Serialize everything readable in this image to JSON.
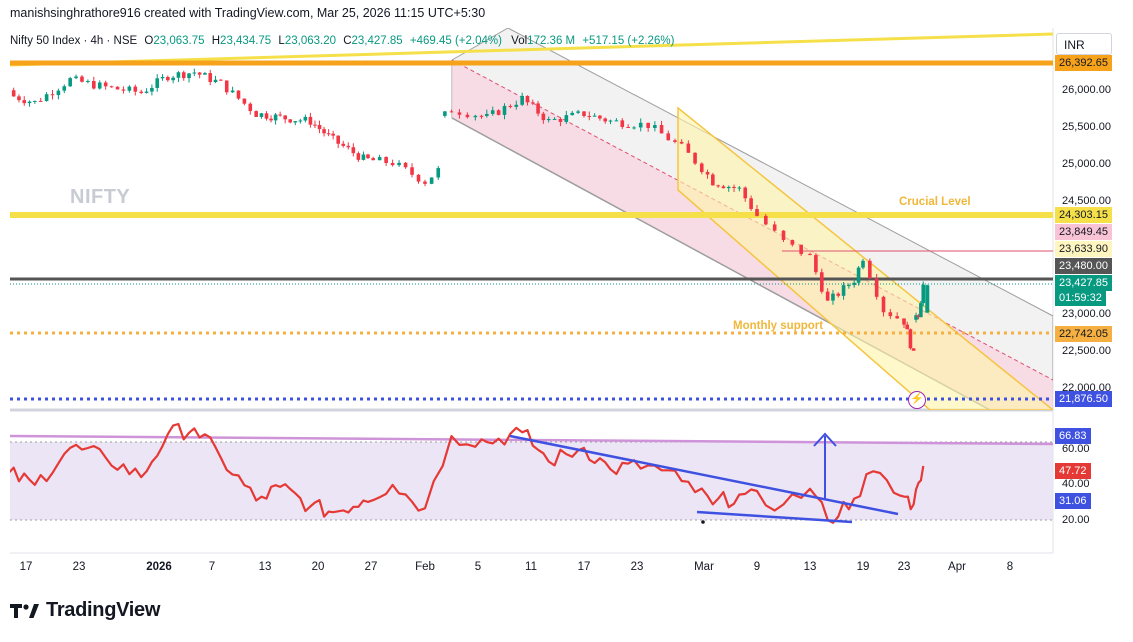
{
  "header": {
    "caption": "manishsinghrathore916 created with TradingView.com, Mar 25, 2026 11:15 UTC+5:30"
  },
  "legend": {
    "symbol": "Nifty 50 Index · 4h · NSE",
    "open_label": "O",
    "open": "23,063.75",
    "high_label": "H",
    "high": "23,434.75",
    "low_label": "L",
    "low": "23,063.20",
    "close_label": "C",
    "close": "23,427.85",
    "change": "+469.45 (+2.04%)",
    "vol_label": "Vol",
    "vol": "172.36 M",
    "vol_change": "+517.15 (+2.26%)"
  },
  "currency": "INR",
  "watermark": "NIFTY",
  "annotations": {
    "crucial": "Crucial Level",
    "monthly": "Monthly support"
  },
  "colors": {
    "up": "#089981",
    "down": "#f23645",
    "rsi": "#e53935",
    "trend_blue": "#3f51e0",
    "orange": "#f7a21b",
    "yellow": "#f5e04a"
  },
  "price_tags": {
    "t1": "26,392.65",
    "t2": "24,303.15",
    "t3": "23,849.45",
    "t4": "23,633.90",
    "t5": "23,480.00",
    "t6": "23,427.85",
    "t6b": "01:59:32",
    "t7": "22,742.05",
    "t8": "21,876.50"
  },
  "rsi_tags": {
    "r1": "66.83",
    "r2": "47.72",
    "r3": "31.06"
  },
  "y_ticks": [
    "26,000.00",
    "25,500.00",
    "25,000.00",
    "24,500.00",
    "23,000.00",
    "22,500.00",
    "22,000.00"
  ],
  "rsi_ticks": [
    "60.00",
    "40.00",
    "20.00"
  ],
  "x_ticks": [
    "17",
    "23",
    "2026",
    "7",
    "13",
    "20",
    "27",
    "Feb",
    "5",
    "11",
    "17",
    "23",
    "Mar",
    "9",
    "13",
    "19",
    "23",
    "Apr",
    "8"
  ],
  "footer": {
    "brand": "TradingView"
  },
  "chart_data": [
    {
      "type": "candlestick",
      "title": "Nifty 50 Index · 4h · NSE",
      "x_range": [
        "Dec 14, 2025",
        "Apr 12, 2026"
      ],
      "ylim": [
        21700,
        26700
      ],
      "current_price": 23427.85,
      "horizontal_levels": [
        26392.65,
        24303.15,
        23849.45,
        23633.9,
        23480.0,
        22742.05,
        21876.5
      ],
      "close_path": [
        {
          "date": "Dec 15",
          "close": 25950
        },
        {
          "date": "Dec 18",
          "close": 25850
        },
        {
          "date": "Dec 22",
          "close": 26150
        },
        {
          "date": "Dec 26",
          "close": 26050
        },
        {
          "date": "Dec 30",
          "close": 25980
        },
        {
          "date": "Jan 2",
          "close": 26200
        },
        {
          "date": "Jan 5",
          "close": 26250
        },
        {
          "date": "Jan 8",
          "close": 26100
        },
        {
          "date": "Jan 12",
          "close": 25700
        },
        {
          "date": "Jan 15",
          "close": 25650
        },
        {
          "date": "Jan 19",
          "close": 25600
        },
        {
          "date": "Jan 22",
          "close": 25350
        },
        {
          "date": "Jan 26",
          "close": 25100
        },
        {
          "date": "Jan 29",
          "close": 25050
        },
        {
          "date": "Feb 1",
          "close": 24800
        },
        {
          "date": "Feb 2",
          "close": 24950
        },
        {
          "date": "Feb 3",
          "close": 25750
        },
        {
          "date": "Feb 6",
          "close": 25650
        },
        {
          "date": "Feb 10",
          "close": 25900
        },
        {
          "date": "Feb 13",
          "close": 25600
        },
        {
          "date": "Feb 17",
          "close": 25700
        },
        {
          "date": "Feb 20",
          "close": 25600
        },
        {
          "date": "Feb 24",
          "close": 25550
        },
        {
          "date": "Feb 27",
          "close": 25250
        },
        {
          "date": "Mar 2",
          "close": 24800
        },
        {
          "date": "Mar 5",
          "close": 24700
        },
        {
          "date": "Mar 9",
          "close": 24000
        },
        {
          "date": "Mar 11",
          "close": 23800
        },
        {
          "date": "Mar 13",
          "close": 23200
        },
        {
          "date": "Mar 16",
          "close": 23500
        },
        {
          "date": "Mar 17",
          "close": 23800
        },
        {
          "date": "Mar 19",
          "close": 23100
        },
        {
          "date": "Mar 21",
          "close": 22950
        },
        {
          "date": "Mar 23",
          "close": 22500
        },
        {
          "date": "Mar 24",
          "close": 23050
        },
        {
          "date": "Mar 25",
          "close": 23427.85
        }
      ]
    },
    {
      "type": "line",
      "title": "RSI",
      "ylim": [
        14,
        86
      ],
      "levels": [
        60,
        20
      ],
      "series": [
        {
          "values": [
            {
              "date": "Dec 15",
              "value": 44
            },
            {
              "date": "Dec 18",
              "value": 38
            },
            {
              "date": "Dec 22",
              "value": 57
            },
            {
              "date": "Dec 26",
              "value": 52
            },
            {
              "date": "Dec 30",
              "value": 42
            },
            {
              "date": "Jan 2",
              "value": 64
            },
            {
              "date": "Jan 5",
              "value": 67
            },
            {
              "date": "Jan 8",
              "value": 52
            },
            {
              "date": "Jan 12",
              "value": 30
            },
            {
              "date": "Jan 15",
              "value": 37
            },
            {
              "date": "Jan 19",
              "value": 27
            },
            {
              "date": "Jan 22",
              "value": 24
            },
            {
              "date": "Jan 26",
              "value": 30
            },
            {
              "date": "Jan 29",
              "value": 38
            },
            {
              "date": "Feb 1",
              "value": 26
            },
            {
              "date": "Feb 3",
              "value": 63
            },
            {
              "date": "Feb 6",
              "value": 60
            },
            {
              "date": "Feb 10",
              "value": 65
            },
            {
              "date": "Feb 13",
              "value": 50
            },
            {
              "date": "Feb 17",
              "value": 57
            },
            {
              "date": "Feb 20",
              "value": 46
            },
            {
              "date": "Feb 24",
              "value": 48
            },
            {
              "date": "Feb 27",
              "value": 40
            },
            {
              "date": "Mar 2",
              "value": 28
            },
            {
              "date": "Mar 5",
              "value": 33
            },
            {
              "date": "Mar 9",
              "value": 28
            },
            {
              "date": "Mar 11",
              "value": 36
            },
            {
              "date": "Mar 13",
              "value": 20
            },
            {
              "date": "Mar 16",
              "value": 31
            },
            {
              "date": "Mar 18",
              "value": 45
            },
            {
              "date": "Mar 20",
              "value": 34
            },
            {
              "date": "Mar 23",
              "value": 28
            },
            {
              "date": "Mar 24",
              "value": 39
            },
            {
              "date": "Mar 25",
              "value": 47.72
            }
          ]
        }
      ]
    }
  ]
}
